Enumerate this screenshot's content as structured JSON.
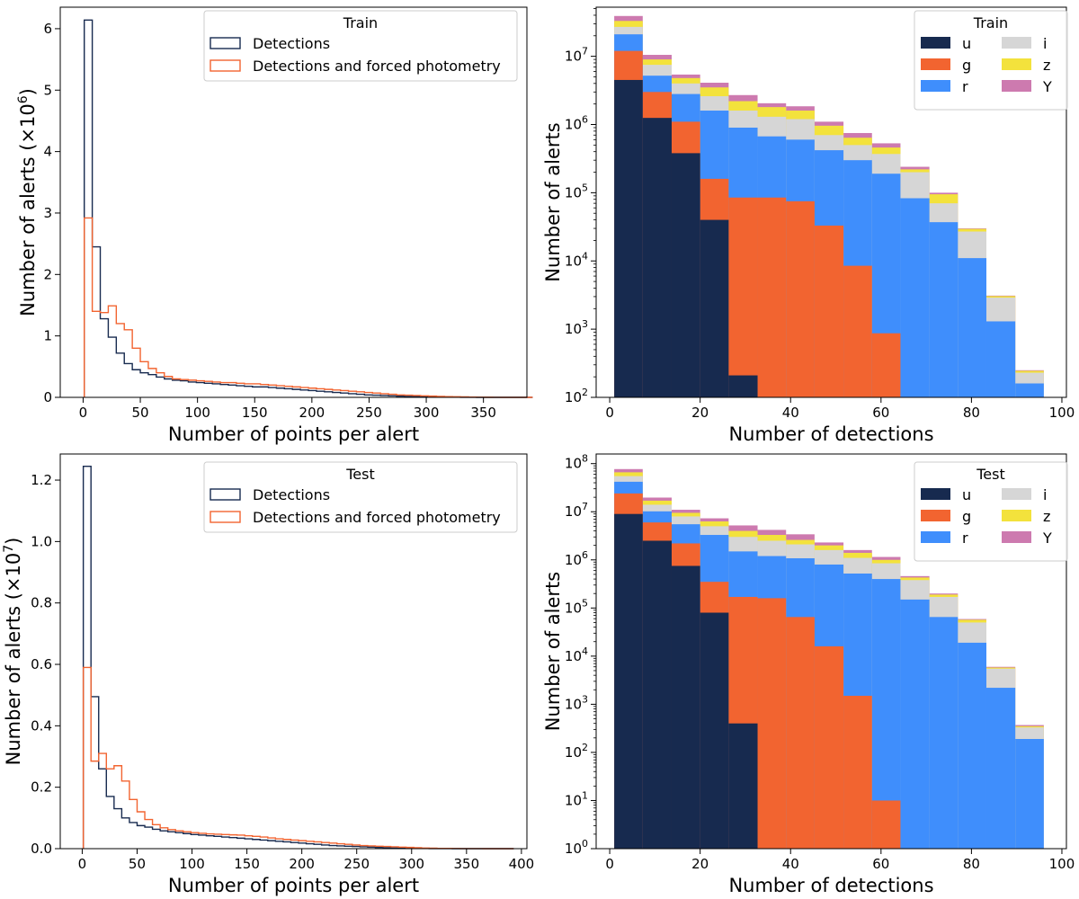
{
  "colors": {
    "detections": "#172a4f",
    "forced": "#f26430",
    "u": "#172a4f",
    "g": "#f26430",
    "r": "#3f8efc",
    "i": "#d6d6d6",
    "z": "#f3e23c",
    "Y": "#cd7aaf"
  },
  "chart_data": [
    {
      "id": "train-points",
      "type": "histogram-step",
      "xlabel": "Number of points per alert",
      "ylabel": "Number of alerts (×10",
      "ylabel_exponent": "6",
      "ylabel_close": ")",
      "xlim": [
        -20,
        388
      ],
      "ylim": [
        0,
        6.35
      ],
      "xticks": [
        "0",
        "50",
        "100",
        "150",
        "200",
        "250",
        "300",
        "350"
      ],
      "xtick_values": [
        0,
        50,
        100,
        150,
        200,
        250,
        300,
        350
      ],
      "yticks": [
        "0",
        "1",
        "2",
        "3",
        "4",
        "5",
        "6"
      ],
      "ytick_values": [
        0,
        1,
        2,
        3,
        4,
        5,
        6
      ],
      "legend_title": "Train",
      "legend": [
        "Detections",
        "Detections and forced photometry"
      ],
      "bin_width": 7,
      "bin_start": 1,
      "series": [
        {
          "name": "Detections",
          "color_key": "detections",
          "values": [
            6.14,
            2.45,
            1.28,
            0.98,
            0.72,
            0.55,
            0.45,
            0.4,
            0.37,
            0.33,
            0.3,
            0.28,
            0.27,
            0.25,
            0.24,
            0.23,
            0.22,
            0.21,
            0.2,
            0.19,
            0.18,
            0.17,
            0.17,
            0.16,
            0.15,
            0.14,
            0.13,
            0.12,
            0.11,
            0.1,
            0.09,
            0.08,
            0.07,
            0.06,
            0.05,
            0.04,
            0.035,
            0.03,
            0.025,
            0.02,
            0.015,
            0.012,
            0.01,
            0.008,
            0.006,
            0.004,
            0.003,
            0.002,
            0.001,
            0.0,
            0.0,
            0.0,
            0.0,
            0.0,
            0.0,
            0.0
          ]
        },
        {
          "name": "Detections and forced photometry",
          "color_key": "forced",
          "values": [
            2.92,
            1.4,
            1.38,
            1.49,
            1.2,
            1.1,
            0.8,
            0.58,
            0.47,
            0.4,
            0.34,
            0.3,
            0.29,
            0.28,
            0.27,
            0.26,
            0.25,
            0.24,
            0.24,
            0.23,
            0.22,
            0.22,
            0.21,
            0.2,
            0.19,
            0.18,
            0.17,
            0.16,
            0.15,
            0.14,
            0.13,
            0.12,
            0.11,
            0.1,
            0.09,
            0.08,
            0.07,
            0.06,
            0.05,
            0.04,
            0.035,
            0.03,
            0.025,
            0.02,
            0.015,
            0.012,
            0.01,
            0.008,
            0.005,
            0.003,
            0.002,
            0.001,
            0.0,
            0.0,
            0.0,
            0.0
          ]
        }
      ]
    },
    {
      "id": "train-detections",
      "type": "stacked-bar-log",
      "xlabel": "Number of detections",
      "ylabel": "Number of alerts",
      "xlim": [
        -3,
        101
      ],
      "ylog_range": [
        2,
        7.72
      ],
      "xticks": [
        "0",
        "20",
        "40",
        "60",
        "80",
        "100"
      ],
      "xtick_values": [
        0,
        20,
        40,
        60,
        80,
        100
      ],
      "ytick_values": [
        2,
        3,
        4,
        5,
        6,
        7
      ],
      "ytick_base": "10",
      "legend_title": "Train",
      "legend": [
        "u",
        "g",
        "r",
        "i",
        "z",
        "Y"
      ],
      "bin_edges": [
        1,
        7.3,
        13.7,
        20,
        26.3,
        32.7,
        39,
        45.3,
        51.7,
        58,
        64.3,
        70.7,
        77,
        83.3,
        89.7,
        96
      ],
      "stack_tops": {
        "u": [
          4500000.0,
          1250000.0,
          380000.0,
          40000.0,
          210,
          0,
          0,
          0,
          0,
          0,
          0,
          0,
          0,
          0,
          0
        ],
        "g": [
          12000000.0,
          3000000.0,
          1100000.0,
          160000.0,
          85000.0,
          85000.0,
          75000.0,
          33000.0,
          8500.0,
          870,
          0,
          0,
          0,
          0,
          0
        ],
        "r": [
          21000000.0,
          5200000.0,
          2800000.0,
          1600000.0,
          900000.0,
          670000.0,
          600000.0,
          420000.0,
          300000.0,
          190000.0,
          83000.0,
          37000.0,
          11000.0,
          1300.0,
          160
        ],
        "i": [
          27000000.0,
          7500000.0,
          4000000.0,
          2600000.0,
          1600000.0,
          1300000.0,
          1200000.0,
          700000.0,
          500000.0,
          370000.0,
          200000.0,
          70000.0,
          27000.0,
          2900.0,
          230
        ],
        "z": [
          33000000.0,
          9000000.0,
          4800000.0,
          3500000.0,
          2200000.0,
          1800000.0,
          1600000.0,
          960000.0,
          640000.0,
          460000.0,
          220000.0,
          95000.0,
          29500.0,
          3050.0,
          245
        ],
        "Y": [
          39000000.0,
          10500000.0,
          5400000.0,
          4100000.0,
          2700000.0,
          2050000.0,
          1850000.0,
          1100000.0,
          750000.0,
          530000.0,
          240000.0,
          100000.0,
          30000.0,
          3100.0,
          250
        ]
      }
    },
    {
      "id": "test-points",
      "type": "histogram-step",
      "xlabel": "Number of points per alert",
      "ylabel": "Number of alerts (×10",
      "ylabel_exponent": "7",
      "ylabel_close": ")",
      "xlim": [
        -20,
        405
      ],
      "ylim": [
        0,
        1.285
      ],
      "xticks": [
        "0",
        "50",
        "100",
        "150",
        "200",
        "250",
        "300",
        "350",
        "400"
      ],
      "xtick_values": [
        0,
        50,
        100,
        150,
        200,
        250,
        300,
        350,
        400
      ],
      "yticks": [
        "0.0",
        "0.2",
        "0.4",
        "0.6",
        "0.8",
        "1.0",
        "1.2"
      ],
      "ytick_values": [
        0,
        0.2,
        0.4,
        0.6,
        0.8,
        1.0,
        1.2
      ],
      "legend_title": "Test",
      "legend": [
        "Detections",
        "Detections and forced photometry"
      ],
      "bin_width": 7,
      "bin_start": 1,
      "series": [
        {
          "name": "Detections",
          "color_key": "detections",
          "values": [
            1.245,
            0.495,
            0.26,
            0.17,
            0.13,
            0.1,
            0.085,
            0.075,
            0.07,
            0.063,
            0.058,
            0.055,
            0.052,
            0.049,
            0.046,
            0.044,
            0.042,
            0.04,
            0.038,
            0.036,
            0.034,
            0.032,
            0.03,
            0.028,
            0.026,
            0.024,
            0.022,
            0.02,
            0.018,
            0.016,
            0.014,
            0.012,
            0.01,
            0.009,
            0.008,
            0.007,
            0.006,
            0.005,
            0.004,
            0.003,
            0.002,
            0.0015,
            0.001,
            0.0008,
            0.0005,
            0.0003,
            0.0002,
            0.0001,
            0.0,
            0.0,
            0.0,
            0.0,
            0.0,
            0.0,
            0.0,
            0.0
          ]
        },
        {
          "name": "Detections and forced photometry",
          "color_key": "forced",
          "values": [
            0.59,
            0.285,
            0.31,
            0.26,
            0.27,
            0.22,
            0.16,
            0.12,
            0.095,
            0.078,
            0.068,
            0.062,
            0.058,
            0.055,
            0.052,
            0.05,
            0.048,
            0.047,
            0.046,
            0.045,
            0.044,
            0.042,
            0.04,
            0.038,
            0.035,
            0.032,
            0.03,
            0.028,
            0.026,
            0.024,
            0.022,
            0.02,
            0.018,
            0.016,
            0.014,
            0.012,
            0.01,
            0.009,
            0.008,
            0.007,
            0.006,
            0.005,
            0.004,
            0.003,
            0.002,
            0.0015,
            0.001,
            0.0008,
            0.0005,
            0.0003,
            0.0002,
            0.0001,
            0.0,
            0.0,
            0.0,
            0.0
          ]
        }
      ]
    },
    {
      "id": "test-detections",
      "type": "stacked-bar-log",
      "xlabel": "Number of detections",
      "ylabel": "Number of alerts",
      "xlim": [
        -3,
        101
      ],
      "ylog_range": [
        0,
        8.2
      ],
      "xticks": [
        "0",
        "20",
        "40",
        "60",
        "80",
        "100"
      ],
      "xtick_values": [
        0,
        20,
        40,
        60,
        80,
        100
      ],
      "ytick_values": [
        0,
        1,
        2,
        3,
        4,
        5,
        6,
        7,
        8
      ],
      "ytick_base": "10",
      "legend_title": "Test",
      "legend": [
        "u",
        "g",
        "r",
        "i",
        "z",
        "Y"
      ],
      "bin_edges": [
        1,
        7.3,
        13.7,
        20,
        26.3,
        32.7,
        39,
        45.3,
        51.7,
        58,
        64.3,
        70.7,
        77,
        83.3,
        89.7,
        96
      ],
      "stack_tops": {
        "u": [
          9000000.0,
          2500000.0,
          750000.0,
          80000.0,
          400,
          0,
          0,
          0,
          0,
          0,
          0,
          0,
          0,
          0,
          0
        ],
        "g": [
          24000000.0,
          6000000.0,
          2200000.0,
          350000.0,
          170000.0,
          160000.0,
          65000.0,
          16000.0,
          1500.0,
          10,
          0,
          0,
          0,
          0,
          0
        ],
        "r": [
          42000000.0,
          10200000.0,
          5500000.0,
          3300000.0,
          1500000.0,
          1200000.0,
          1080000.0,
          800000.0,
          520000.0,
          400000.0,
          150000.0,
          65000.0,
          19000.0,
          2200.0,
          190
        ],
        "i": [
          55000000.0,
          14000000.0,
          8000000.0,
          5000000.0,
          3000000.0,
          2500000.0,
          2100000.0,
          1600000.0,
          1100000.0,
          850000.0,
          380000.0,
          170000.0,
          50000.0,
          5500.0,
          330
        ],
        "z": [
          66000000.0,
          17000000.0,
          9500000.0,
          6300000.0,
          4000000.0,
          3300000.0,
          2600000.0,
          2000000.0,
          1400000.0,
          1000000.0,
          430000.0,
          190000.0,
          57000.0,
          5800.0,
          350
        ],
        "Y": [
          77000000.0,
          19700000.0,
          11000000.0,
          7300000.0,
          5200000.0,
          4200000.0,
          3400000.0,
          2300000.0,
          1600000.0,
          1150000.0,
          460000.0,
          200000.0,
          59000.0,
          6000.0,
          370
        ]
      }
    }
  ]
}
